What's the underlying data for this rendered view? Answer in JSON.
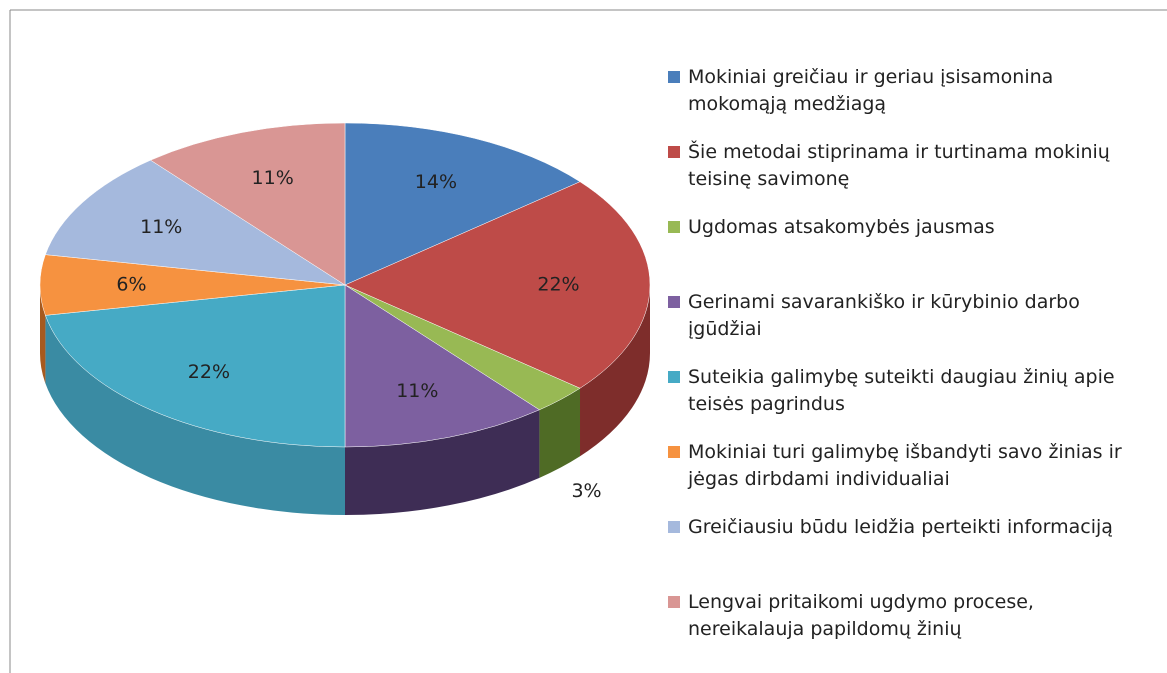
{
  "chart_data": {
    "type": "pie",
    "categories": [
      "Mokiniai greičiau ir geriau įsisamonina mokomąją medžiagą",
      "Šie metodai stiprinama ir turtinama mokinių teisinę savimonę",
      "Ugdomas atsakomybės jausmas",
      "Gerinami savarankiško ir kūrybinio darbo įgūdžiai",
      "Suteikia galimybę suteikti daugiau žinių apie teisės pagrindus",
      "Mokiniai turi galimybę išbandyti savo žinias ir jėgas dirbdami individualiai",
      "Greičiausiu būdu leidžia perteikti informaciją",
      "Lengvai pritaikomi ugdymo procese, nereikalauja papildomų žinių"
    ],
    "values": [
      14,
      22,
      3,
      11,
      22,
      6,
      11,
      11
    ],
    "value_labels": [
      "14%",
      "22%",
      "3%",
      "11%",
      "22%",
      "6%",
      "11%",
      "11%"
    ],
    "colors": [
      "#4a7ebb",
      "#be4b48",
      "#98b954",
      "#7d60a0",
      "#46aac5",
      "#f69240",
      "#a5b9dd",
      "#d99694"
    ],
    "side_colors": [
      "#2f5687",
      "#7e2d2b",
      "#4f6b25",
      "#3e2d55",
      "#3a8ba3",
      "#a75a1f",
      "#6f84ad",
      "#9c5e5c"
    ],
    "legend": "right"
  }
}
